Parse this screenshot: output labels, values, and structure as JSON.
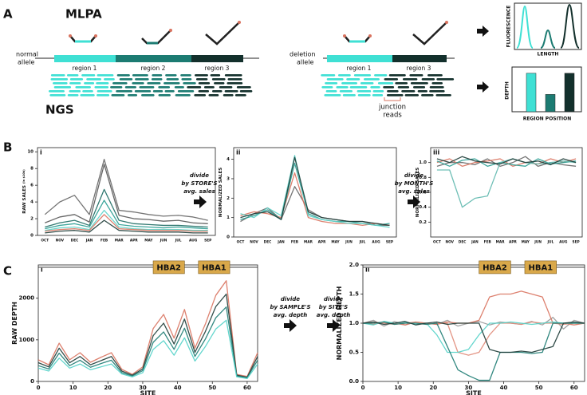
{
  "diagram": {
    "panel_a": "A",
    "mlpa": "MLPA",
    "normal_allele": [
      "normal",
      "allele"
    ],
    "normal_regions": [
      "region 1",
      "region 2",
      "region 3"
    ],
    "ngs": "NGS",
    "deletion_allele": [
      "deletion",
      "allele"
    ],
    "deletion_regions": [
      "region 1",
      "region 3"
    ],
    "junction_reads": [
      "junction",
      "reads"
    ],
    "fluorescence": "FLUORESCENCE",
    "length": "LENGTH",
    "panel_b": "B",
    "divide_store": [
      "divide",
      "by STORE'S",
      "avg. sales"
    ],
    "divide_month": [
      "divide",
      "by MONTH'S",
      "avg. sales"
    ],
    "panel_c": "C",
    "divide_sample": [
      "divide",
      "by SAMPLE'S",
      "avg. depth"
    ],
    "divide_site": [
      "divide",
      "by SITE'S",
      "avg. depth"
    ]
  },
  "chart_data": [
    {
      "type": "line",
      "panel": "i",
      "ylabel": "RAW SALES",
      "ylabel_unit": "(in $10k)",
      "categories": [
        "OCT",
        "NOV",
        "DEC",
        "JAN",
        "FEB",
        "MAR",
        "APR",
        "MAY",
        "JUN",
        "JUL",
        "AUG",
        "SEP"
      ],
      "ylim": [
        0,
        10.5
      ],
      "yticks": [
        0,
        2,
        4,
        6,
        8,
        10
      ],
      "series": [
        {
          "color": "#666666",
          "values": [
            2.5,
            4,
            4.8,
            2.5,
            9.1,
            3,
            2.8,
            2.5,
            2.3,
            2.4,
            2.2,
            1.8
          ]
        },
        {
          "color": "#555555",
          "values": [
            1.5,
            2.2,
            2.5,
            1.6,
            8.5,
            2.4,
            2.0,
            1.9,
            1.7,
            1.8,
            1.5,
            1.4
          ]
        },
        {
          "color": "#1c6b63",
          "values": [
            1.0,
            1.5,
            1.8,
            1.2,
            5.5,
            1.8,
            1.4,
            1.3,
            1.2,
            1.2,
            1.1,
            1.0
          ]
        },
        {
          "color": "#2a9d92",
          "values": [
            0.8,
            1.2,
            1.4,
            1.0,
            4.2,
            1.3,
            1.1,
            1.0,
            0.9,
            1.0,
            0.9,
            0.8
          ]
        },
        {
          "color": "#5fd3c9",
          "values": [
            0.6,
            0.9,
            1.0,
            0.7,
            3.0,
            1.0,
            0.8,
            0.7,
            0.7,
            0.7,
            0.6,
            0.6
          ]
        },
        {
          "color": "#d9735f",
          "values": [
            0.5,
            0.7,
            0.8,
            0.6,
            2.5,
            0.8,
            0.7,
            0.6,
            0.6,
            0.6,
            0.5,
            0.5
          ]
        },
        {
          "color": "#1d3b36",
          "values": [
            0.3,
            0.5,
            0.6,
            0.4,
            1.8,
            0.6,
            0.5,
            0.4,
            0.4,
            0.4,
            0.3,
            0.3
          ]
        }
      ]
    },
    {
      "type": "line",
      "panel": "ii",
      "ylabel": "NORMALIZED SALES",
      "categories": [
        "OCT",
        "NOV",
        "DEC",
        "JAN",
        "FEB",
        "MAR",
        "APR",
        "MAY",
        "JUN",
        "JUL",
        "AUG",
        "SEP"
      ],
      "ylim": [
        0,
        4.6
      ],
      "yticks": [
        0,
        1,
        2,
        3,
        4
      ],
      "series": [
        {
          "color": "#666666",
          "values": [
            0.8,
            1.2,
            1.5,
            0.9,
            2.6,
            1.4,
            1.0,
            0.9,
            0.8,
            0.8,
            0.6,
            0.6
          ]
        },
        {
          "color": "#d9735f",
          "values": [
            1.1,
            1.3,
            1.2,
            1.0,
            3.3,
            1.0,
            0.8,
            0.7,
            0.7,
            0.6,
            0.7,
            0.6
          ]
        },
        {
          "color": "#2a9d92",
          "values": [
            0.9,
            1.1,
            1.4,
            0.9,
            3.8,
            1.2,
            0.9,
            0.8,
            0.8,
            0.7,
            0.6,
            0.7
          ]
        },
        {
          "color": "#5fd3c9",
          "values": [
            1.2,
            1.0,
            1.5,
            1.1,
            4.2,
            1.1,
            0.9,
            0.8,
            0.7,
            0.7,
            0.6,
            0.5
          ]
        },
        {
          "color": "#1d3b36",
          "values": [
            1.0,
            1.2,
            1.3,
            0.9,
            4.1,
            1.3,
            1.0,
            0.9,
            0.8,
            0.8,
            0.7,
            0.6
          ]
        }
      ]
    },
    {
      "type": "line",
      "panel": "iii",
      "ylabel": "NORMALIZED SALES",
      "categories": [
        "OCT",
        "NOV",
        "DEC",
        "JAN",
        "FEB",
        "MAR",
        "APR",
        "MAY",
        "JUN",
        "JUL",
        "AUG",
        "SEP"
      ],
      "ylim": [
        0,
        1.2
      ],
      "yticks": [
        0.2,
        0.4,
        0.6,
        0.8,
        {
          "value": 1,
          "label": "1.0"
        }
      ],
      "series": [
        {
          "color": "#666666",
          "values": [
            0.95,
            1.0,
            1.0,
            0.97,
            1.05,
            0.95,
            1.0,
            1.08,
            0.95,
            1.0,
            0.97,
            0.95
          ]
        },
        {
          "color": "#d9735f",
          "values": [
            1.0,
            1.05,
            0.95,
            1.0,
            1.02,
            1.05,
            0.95,
            1.0,
            0.98,
            1.05,
            1.0,
            1.05
          ]
        },
        {
          "color": "#2a9d92",
          "values": [
            1.02,
            0.95,
            1.03,
            1.05,
            0.95,
            1.0,
            0.97,
            0.95,
            1.05,
            0.98,
            1.0,
            1.02
          ]
        },
        {
          "color": "#5fb8ae",
          "values": [
            0.9,
            0.9,
            0.4,
            0.52,
            0.55,
            1.0,
            1.05,
            1.0,
            0.98,
            1.0,
            1.02,
            1.0
          ]
        },
        {
          "color": "#1d3b36",
          "values": [
            1.05,
            1.0,
            1.08,
            1.02,
            1.0,
            0.98,
            1.05,
            1.0,
            1.02,
            0.97,
            1.05,
            1.0
          ]
        }
      ]
    },
    {
      "type": "line",
      "panel": "i",
      "ylabel": "RAW DEPTH",
      "xlabel": "SITE",
      "x": [
        0,
        3,
        6,
        9,
        12,
        15,
        18,
        21,
        24,
        27,
        30,
        33,
        36,
        39,
        42,
        45,
        48,
        51,
        54,
        57,
        60,
        63
      ],
      "xlim": [
        0,
        63
      ],
      "xticks": [
        0,
        10,
        20,
        30,
        40,
        50,
        60
      ],
      "ylim": [
        0,
        2800
      ],
      "yticks": [
        0,
        1000,
        2000
      ],
      "genes": [
        {
          "label": "HBA2",
          "start": 33,
          "end": 42
        },
        {
          "label": "HBA1",
          "start": 46,
          "end": 55
        }
      ],
      "series": [
        {
          "color": "#d9735f",
          "values": [
            520,
            400,
            920,
            520,
            690,
            460,
            580,
            690,
            290,
            170,
            350,
            1270,
            1610,
            1040,
            1730,
            800,
            1380,
            2070,
            2420,
            170,
            120,
            690
          ]
        },
        {
          "color": "#1d3b36",
          "values": [
            450,
            350,
            800,
            450,
            600,
            400,
            500,
            600,
            250,
            150,
            300,
            1100,
            1400,
            900,
            1500,
            700,
            1200,
            1800,
            2100,
            150,
            100,
            600
          ]
        },
        {
          "color": "#1c7b72",
          "values": [
            380,
            300,
            680,
            380,
            510,
            340,
            430,
            510,
            210,
            130,
            260,
            940,
            1190,
            770,
            1280,
            600,
            1020,
            1530,
            1790,
            130,
            90,
            510
          ]
        },
        {
          "color": "#52d1c8",
          "values": [
            320,
            250,
            560,
            320,
            420,
            280,
            350,
            420,
            180,
            110,
            210,
            770,
            980,
            630,
            1050,
            490,
            840,
            1260,
            1470,
            110,
            70,
            420
          ]
        }
      ]
    },
    {
      "type": "line",
      "panel": "ii",
      "ylabel": "NORMALIZED DEPTH",
      "xlabel": "SITE",
      "x": [
        0,
        3,
        6,
        9,
        12,
        15,
        18,
        21,
        24,
        27,
        30,
        33,
        36,
        39,
        42,
        45,
        48,
        51,
        54,
        57,
        60,
        63
      ],
      "xlim": [
        0,
        63
      ],
      "xticks": [
        0,
        10,
        20,
        30,
        40,
        50,
        60
      ],
      "ylim": [
        0,
        2
      ],
      "yticks": [
        {
          "value": 0,
          "label": "0.0"
        },
        0.5,
        {
          "value": 1,
          "label": "1.0"
        },
        1.5,
        {
          "value": 2,
          "label": "2.0"
        }
      ],
      "genes": [
        {
          "label": "HBA2",
          "start": 33,
          "end": 42
        },
        {
          "label": "HBA1",
          "start": 46,
          "end": 55
        }
      ],
      "series": [
        {
          "color": "#999999",
          "values": [
            1.0,
            1.05,
            0.95,
            1.03,
            0.97,
            1.02,
            1.0,
            0.98,
            1.05,
            0.95,
            1.0,
            1.03,
            0.97,
            1.02,
            1.0,
            0.98,
            1.03,
            0.97,
            1.1,
            0.9,
            1.05,
            1.0
          ]
        },
        {
          "color": "#d9735f",
          "values": [
            1.0,
            0.98,
            1.02,
            1.0,
            0.97,
            1.02,
            1.0,
            0.98,
            1.02,
            1.0,
            1.0,
            1.05,
            1.45,
            1.5,
            1.5,
            1.55,
            1.5,
            1.45,
            1.0,
            1.0,
            0.97,
            1.0
          ]
        },
        {
          "color": "#e08a78",
          "values": [
            1.0,
            1.02,
            1.0,
            0.98,
            1.0,
            1.02,
            0.98,
            1.0,
            1.0,
            0.5,
            0.45,
            0.5,
            0.8,
            1.0,
            1.0,
            0.98,
            1.02,
            1.0,
            1.0,
            0.98,
            1.0,
            1.0
          ]
        },
        {
          "color": "#52d1c8",
          "values": [
            1.0,
            0.97,
            1.03,
            1.0,
            1.02,
            0.98,
            1.0,
            0.8,
            0.5,
            0.5,
            0.55,
            0.8,
            1.0,
            1.0,
            1.02,
            1.0,
            0.98,
            1.0,
            1.02,
            1.0,
            1.0,
            1.0
          ]
        },
        {
          "color": "#1c7b72",
          "values": [
            1.0,
            1.0,
            1.02,
            0.98,
            1.0,
            1.0,
            0.98,
            1.0,
            0.6,
            0.2,
            0.1,
            0.02,
            0.02,
            0.5,
            0.5,
            0.5,
            0.48,
            0.5,
            1.0,
            1.0,
            1.0,
            1.0
          ]
        },
        {
          "color": "#1d3b36",
          "values": [
            1.0,
            1.02,
            0.98,
            1.0,
            1.03,
            0.97,
            1.0,
            1.02,
            0.98,
            1.0,
            1.0,
            1.0,
            0.55,
            0.5,
            0.5,
            0.52,
            0.5,
            0.55,
            0.6,
            1.0,
            1.02,
            1.0
          ]
        }
      ]
    },
    {
      "type": "bar",
      "ylabel": "DEPTH",
      "xlabel": "REGION POSITION",
      "categories": [
        null,
        null,
        null
      ],
      "values": [
        1,
        0.45,
        1
      ],
      "colors": [
        "#3fe0d4",
        "#1c7b72",
        "#13302c"
      ],
      "ylim": [
        0,
        1.1
      ]
    }
  ]
}
